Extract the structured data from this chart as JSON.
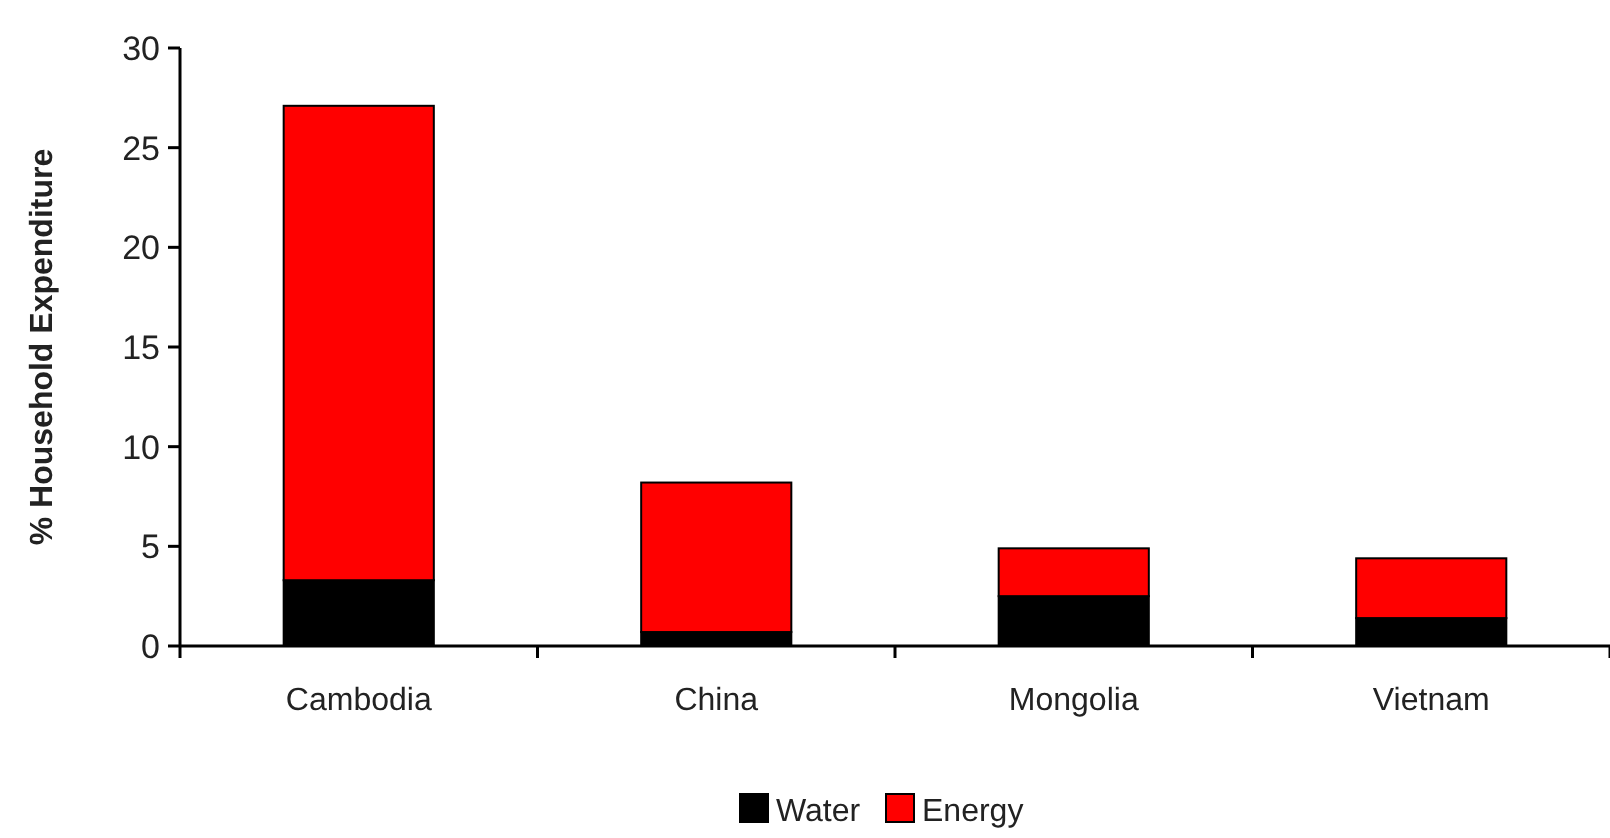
{
  "chart_data": {
    "type": "bar",
    "stacked": true,
    "ylabel": "% Household Expenditure",
    "categories": [
      "Cambodia",
      "China",
      "Mongolia",
      "Vietnam"
    ],
    "series": [
      {
        "name": "Water",
        "color": "#000000",
        "values": [
          3.3,
          0.7,
          2.5,
          1.4
        ]
      },
      {
        "name": "Energy",
        "color": "#ff0000",
        "values": [
          23.8,
          7.5,
          2.4,
          3.0
        ]
      }
    ],
    "ylim": [
      0,
      30
    ],
    "yticks": [
      0,
      5,
      10,
      15,
      20,
      25,
      30
    ],
    "grid": false,
    "legend": "bottom"
  }
}
